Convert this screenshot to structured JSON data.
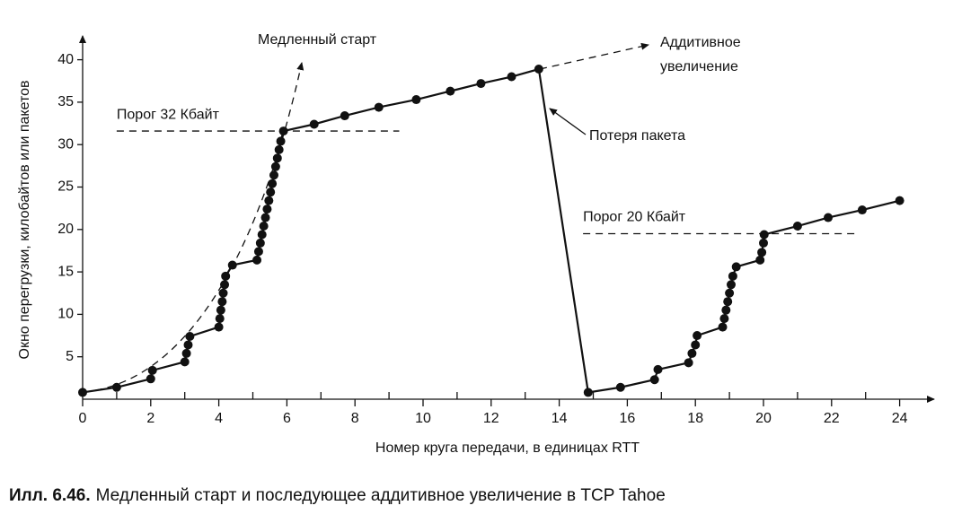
{
  "chart_data": {
    "type": "line",
    "x_label": "Номер круга передачи, в единицах RTT",
    "y_label": "Окно перегрузки, килобайтов или пакетов",
    "caption": {
      "label": "Илл. 6.46.",
      "text": "Медленный старт и последующее аддитивное увеличение в TCP Tahoe"
    },
    "annotations": {
      "slow_start": "Медленный старт",
      "additive": [
        "Аддитивное",
        "увеличение"
      ],
      "packet_loss": "Потеря пакета"
    },
    "color": "#111111",
    "x": [
      0,
      1,
      2,
      2.05,
      3,
      3.05,
      3.1,
      3.15,
      4,
      4.03,
      4.06,
      4.1,
      4.13,
      4.17,
      4.2,
      4.4,
      5.12,
      5.17,
      5.22,
      5.27,
      5.32,
      5.37,
      5.42,
      5.47,
      5.52,
      5.57,
      5.62,
      5.67,
      5.72,
      5.77,
      5.82,
      5.9,
      6.8,
      7.7,
      8.7,
      9.8,
      10.8,
      11.7,
      12.6,
      13.4,
      14.85,
      15.8,
      16.8,
      16.9,
      17.8,
      17.9,
      18.0,
      18.05,
      18.8,
      18.85,
      18.9,
      18.95,
      19.0,
      19.05,
      19.1,
      19.2,
      19.9,
      19.95,
      20.0,
      20.02,
      21,
      21.9,
      22.9,
      24
    ],
    "values": [
      0.8,
      1.4,
      2.4,
      3.4,
      4.4,
      5.4,
      6.4,
      7.4,
      8.5,
      9.5,
      10.5,
      11.5,
      12.5,
      13.5,
      14.5,
      15.8,
      16.4,
      17.4,
      18.4,
      19.4,
      20.4,
      21.4,
      22.4,
      23.4,
      24.4,
      25.4,
      26.4,
      27.4,
      28.4,
      29.4,
      30.4,
      31.6,
      32.4,
      33.4,
      34.4,
      35.3,
      36.3,
      37.2,
      38,
      38.9,
      0.8,
      1.4,
      2.3,
      3.5,
      4.3,
      5.4,
      6.4,
      7.5,
      8.5,
      9.5,
      10.5,
      11.5,
      12.5,
      13.5,
      14.5,
      15.6,
      16.4,
      17.3,
      18.4,
      19.4,
      20.4,
      21.4,
      22.3,
      23.4
    ],
    "thresholds": [
      {
        "label": "Порог 32 Кбайт",
        "value": 31.6,
        "x": [
          1,
          9.3
        ]
      },
      {
        "label": "Порог 20 Кбайт",
        "value": 19.5,
        "x": [
          14.7,
          22.8
        ]
      }
    ],
    "xlim": [
      0,
      25
    ],
    "ylim": [
      0,
      42.6
    ],
    "xticks": [
      0,
      2,
      4,
      6,
      8,
      10,
      12,
      14,
      16,
      18,
      20,
      22,
      24
    ],
    "xminor_ticks": [
      1,
      3,
      5,
      7,
      9,
      11,
      13,
      15,
      17,
      19,
      21,
      23
    ],
    "yticks": [
      5,
      10,
      15,
      20,
      25,
      30,
      35,
      40
    ]
  }
}
